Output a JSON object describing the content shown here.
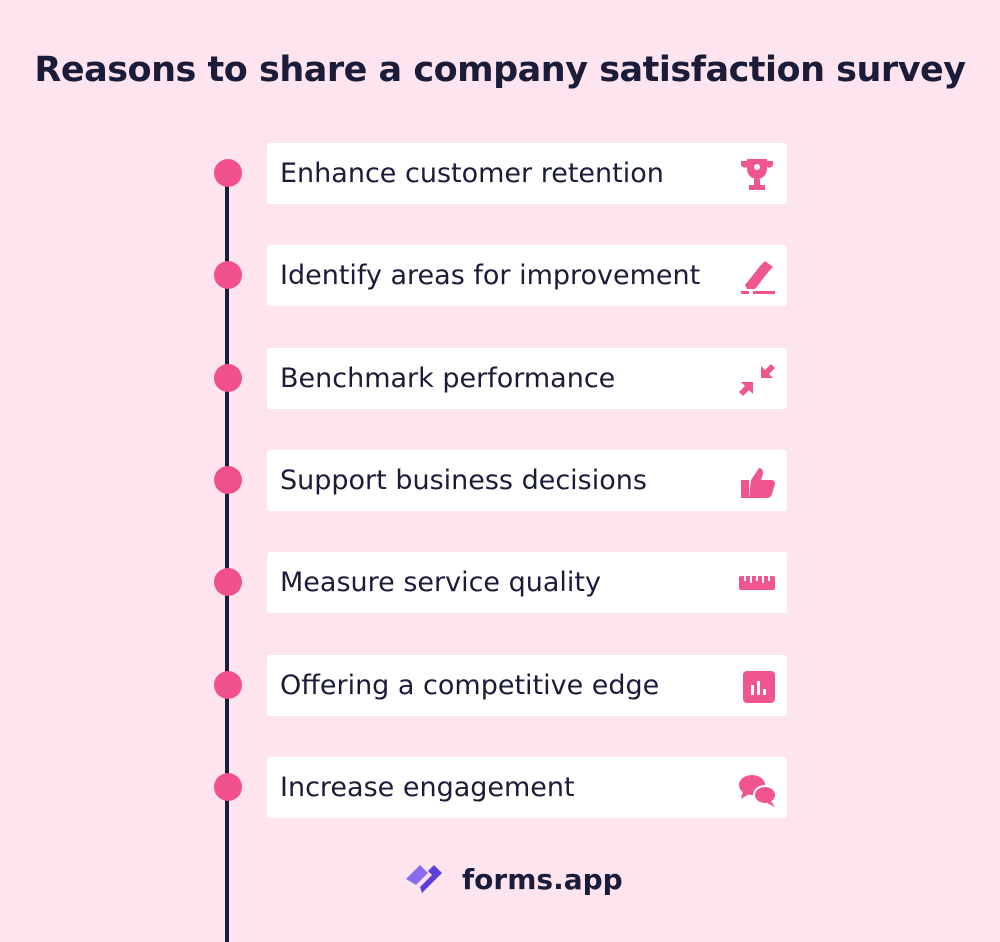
{
  "header": {
    "title": "Reasons to share a company satisfaction survey"
  },
  "items": [
    {
      "label": "Enhance customer retention"
    },
    {
      "label": "Identify areas for improvement"
    },
    {
      "label": "Benchmark performance"
    },
    {
      "label": "Support business decisions"
    },
    {
      "label": "Measure service quality"
    },
    {
      "label": "Offering a competitive edge"
    },
    {
      "label": "Increase engagement"
    }
  ],
  "brand": {
    "name": "forms.app"
  }
}
